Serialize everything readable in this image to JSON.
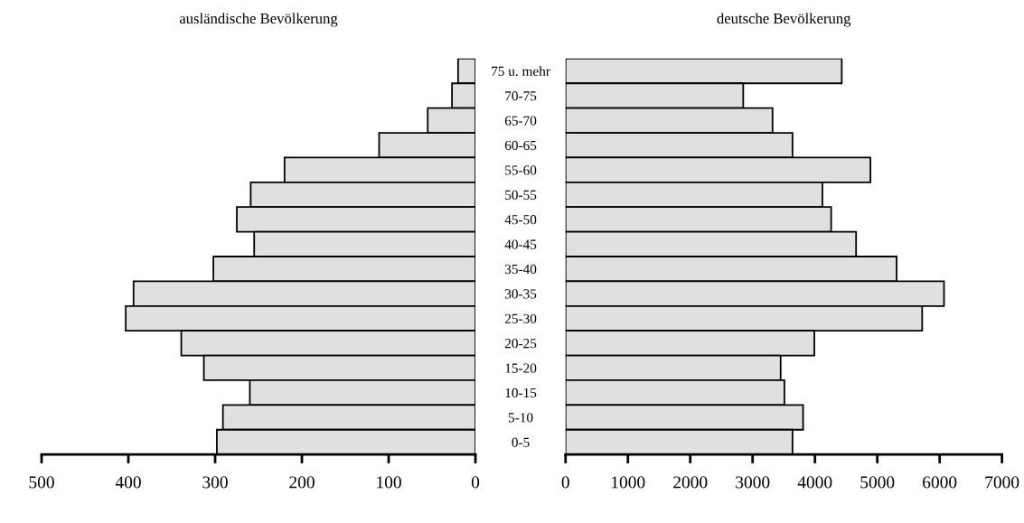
{
  "chart_data": [
    {
      "type": "bar",
      "orientation": "horizontal",
      "title": "ausländische Bevölkerung",
      "categories": [
        "75 u. mehr",
        "70-75",
        "65-70",
        "60-65",
        "55-60",
        "50-55",
        "45-50",
        "40-45",
        "35-40",
        "30-35",
        "25-30",
        "20-25",
        "15-20",
        "10-15",
        "5-10",
        "0-5"
      ],
      "values": [
        20,
        27,
        55,
        111,
        220,
        259,
        275,
        255,
        302,
        394,
        403,
        339,
        313,
        260,
        291,
        298
      ],
      "color": "#e0e0e0",
      "xlim": [
        500,
        0
      ],
      "xticks": [
        500,
        400,
        300,
        200,
        100,
        0
      ],
      "grid": false,
      "legend": false
    },
    {
      "type": "bar",
      "orientation": "horizontal",
      "title": "deutsche Bevölkerung",
      "categories": [
        null,
        null,
        null,
        null,
        null,
        null,
        null,
        null,
        null,
        null,
        null,
        null,
        null,
        null,
        null,
        null
      ],
      "values": [
        4430,
        2850,
        3320,
        3640,
        4890,
        4120,
        4260,
        4660,
        5310,
        6070,
        5720,
        3990,
        3450,
        3510,
        3810,
        3640
      ],
      "color": "#e0e0e0",
      "xlim": [
        0,
        7000
      ],
      "xticks": [
        0,
        1000,
        2000,
        3000,
        4000,
        5000,
        6000,
        7000
      ],
      "grid": false,
      "legend": false
    }
  ]
}
